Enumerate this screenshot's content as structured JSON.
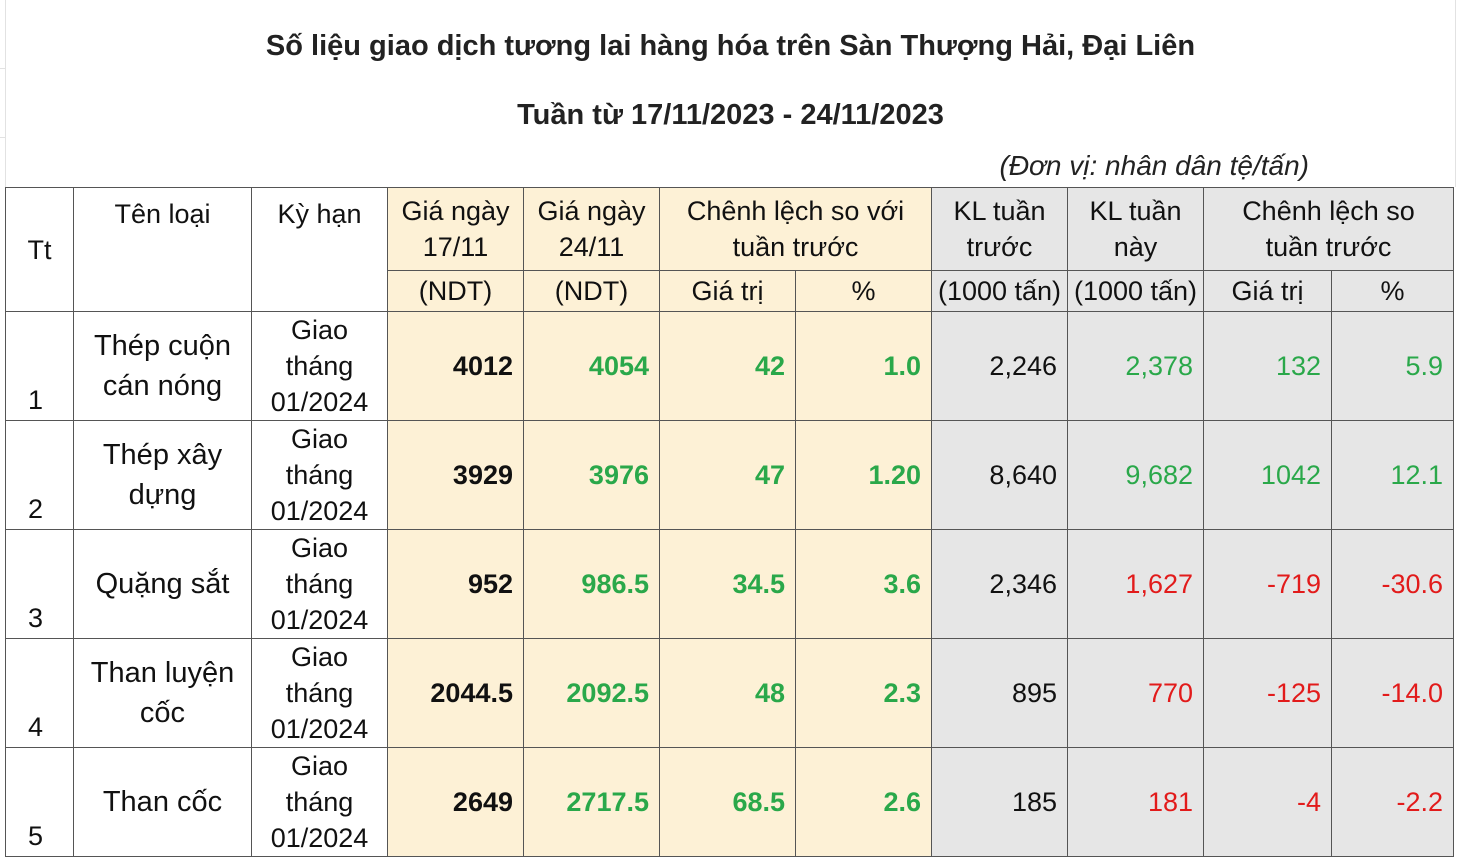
{
  "title": "Số liệu giao dịch tương lai hàng hóa trên Sàn Thượng Hải, Đại Liên",
  "subtitle": "Tuần từ 17/11/2023 - 24/11/2023",
  "unit_note": "(Đơn vị: nhân dân tệ/tấn)",
  "headers": {
    "tt": "Tt",
    "name": "Tên loại",
    "term": "Kỳ hạn",
    "price_1711_line1": "Giá ngày",
    "price_1711_line2": "17/11",
    "price_1711_unit": "(NDT)",
    "price_2411_line1": "Giá ngày",
    "price_2411_line2": "24/11",
    "price_2411_unit": "(NDT)",
    "diff_price_line1": "Chênh lệch so với",
    "diff_price_line2": "tuần trước",
    "value": "Giá trị",
    "percent": "%",
    "kl_prev_line1": "KL tuần",
    "kl_prev_line2": "trước",
    "kl_prev_unit": "(1000 tấn)",
    "kl_this_line1": "KL tuần",
    "kl_this_line2": "này",
    "kl_this_unit": "(1000 tấn)",
    "diff_kl_line1": "Chênh lệch so",
    "diff_kl_line2": "tuần trước",
    "value2": "Giá trị",
    "percent2": "%"
  },
  "rows": [
    {
      "tt": "1",
      "name1": "Thép cuộn",
      "name2": "cán nóng",
      "term1": "Giao",
      "term2": "tháng",
      "term3": "01/2024",
      "p1711": "4012",
      "p2411": "4054",
      "dval": "42",
      "dpct": "1.0",
      "klprev": "2,246",
      "klthis": "2,378",
      "kldval": "132",
      "kldpct": "5.9"
    },
    {
      "tt": "2",
      "name1": "Thép xây",
      "name2": "dựng",
      "term1": "Giao",
      "term2": "tháng",
      "term3": "01/2024",
      "p1711": "3929",
      "p2411": "3976",
      "dval": "47",
      "dpct": "1.20",
      "klprev": "8,640",
      "klthis": "9,682",
      "kldval": "1042",
      "kldpct": "12.1"
    },
    {
      "tt": "3",
      "name1": "Quặng sắt",
      "name2": "",
      "term1": "Giao",
      "term2": "tháng",
      "term3": "01/2024",
      "p1711": "952",
      "p2411": "986.5",
      "dval": "34.5",
      "dpct": "3.6",
      "klprev": "2,346",
      "klthis": "1,627",
      "kldval": "-719",
      "kldpct": "-30.6"
    },
    {
      "tt": "4",
      "name1": "Than luyện",
      "name2": "cốc",
      "term1": "Giao",
      "term2": "tháng",
      "term3": "01/2024",
      "p1711": "2044.5",
      "p2411": "2092.5",
      "dval": "48",
      "dpct": "2.3",
      "klprev": "895",
      "klthis": "770",
      "kldval": "-125",
      "kldpct": "-14.0"
    },
    {
      "tt": "5",
      "name1": "Than cốc",
      "name2": "",
      "term1": "Giao",
      "term2": "tháng",
      "term3": "01/2024",
      "p1711": "2649",
      "p2411": "2717.5",
      "dval": "68.5",
      "dpct": "2.6",
      "klprev": "185",
      "klthis": "181",
      "kldval": "-4",
      "kldpct": "-2.2"
    }
  ],
  "colors": {
    "green": "#2aa84a",
    "red": "#e21b1b",
    "beige": "#fdf1d6",
    "grey": "#e6e6e6"
  }
}
